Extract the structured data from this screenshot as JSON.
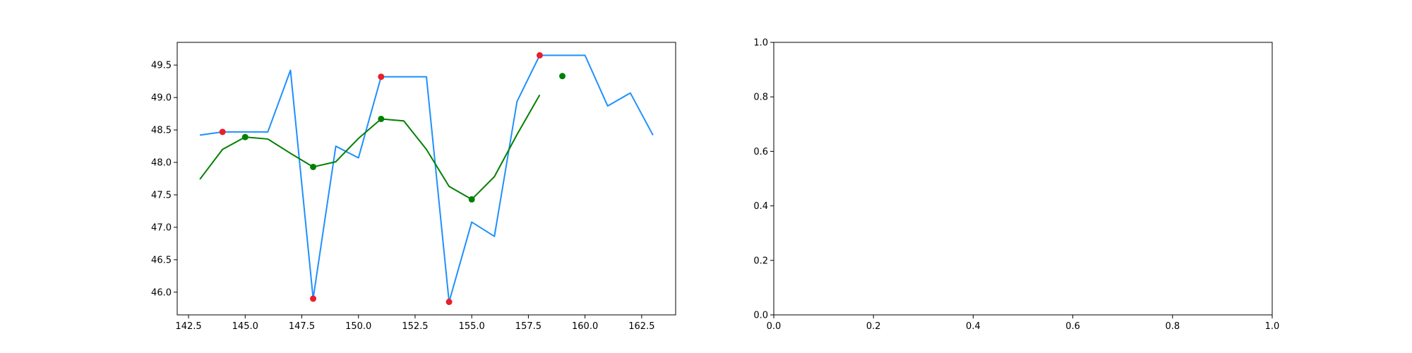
{
  "chart_data": [
    {
      "type": "line",
      "title": "",
      "xlabel": "",
      "ylabel": "",
      "xlim": [
        142.0,
        164.0
      ],
      "ylim": [
        45.65,
        49.85
      ],
      "xticks": [
        142.5,
        145.0,
        147.5,
        150.0,
        152.5,
        155.0,
        157.5,
        160.0,
        162.5
      ],
      "xtick_labels": [
        "142.5",
        "145.0",
        "147.5",
        "150.0",
        "152.5",
        "155.0",
        "157.5",
        "160.0",
        "162.5"
      ],
      "yticks": [
        46.0,
        46.5,
        47.0,
        47.5,
        48.0,
        48.5,
        49.0,
        49.5
      ],
      "ytick_labels": [
        "46.0",
        "46.5",
        "47.0",
        "47.5",
        "48.0",
        "48.5",
        "49.0",
        "49.5"
      ],
      "grid": false,
      "series": [
        {
          "kind": "line",
          "color": "#1e90ff",
          "x": [
            143,
            144,
            145,
            146,
            147,
            148,
            149,
            150,
            151,
            152,
            153,
            154,
            155,
            156,
            157,
            158,
            159,
            160,
            161,
            162,
            163
          ],
          "y": [
            48.42,
            48.47,
            48.47,
            48.47,
            49.42,
            45.9,
            48.25,
            48.07,
            49.32,
            49.32,
            49.32,
            45.85,
            47.08,
            46.86,
            48.94,
            49.65,
            49.65,
            49.65,
            48.87,
            49.07,
            48.42
          ]
        },
        {
          "kind": "line",
          "color": "#008000",
          "x": [
            143,
            144,
            145,
            146,
            147,
            148,
            149,
            150,
            151,
            152,
            153,
            154,
            155,
            156,
            157,
            158
          ],
          "y": [
            47.74,
            48.2,
            48.39,
            48.36,
            48.14,
            47.93,
            48.01,
            48.37,
            48.67,
            48.64,
            48.2,
            47.63,
            47.43,
            47.78,
            48.43,
            49.04
          ]
        },
        {
          "kind": "scatter",
          "color": "#e8202a",
          "x": [
            144,
            148,
            151,
            154,
            158
          ],
          "y": [
            48.47,
            45.9,
            49.32,
            45.85,
            49.65
          ]
        },
        {
          "kind": "scatter",
          "color": "#008000",
          "x": [
            145,
            148,
            151,
            155,
            159
          ],
          "y": [
            48.39,
            47.93,
            48.67,
            47.43,
            49.33
          ]
        }
      ]
    },
    {
      "type": "line",
      "title": "",
      "xlabel": "",
      "ylabel": "",
      "xlim": [
        0.0,
        1.0
      ],
      "ylim": [
        0.0,
        1.0
      ],
      "xticks": [
        0.0,
        0.2,
        0.4,
        0.6,
        0.8,
        1.0
      ],
      "xtick_labels": [
        "0.0",
        "0.2",
        "0.4",
        "0.6",
        "0.8",
        "1.0"
      ],
      "yticks": [
        0.0,
        0.2,
        0.4,
        0.6,
        0.8,
        1.0
      ],
      "ytick_labels": [
        "0.0",
        "0.2",
        "0.4",
        "0.6",
        "0.8",
        "1.0"
      ],
      "grid": false,
      "series": []
    }
  ]
}
